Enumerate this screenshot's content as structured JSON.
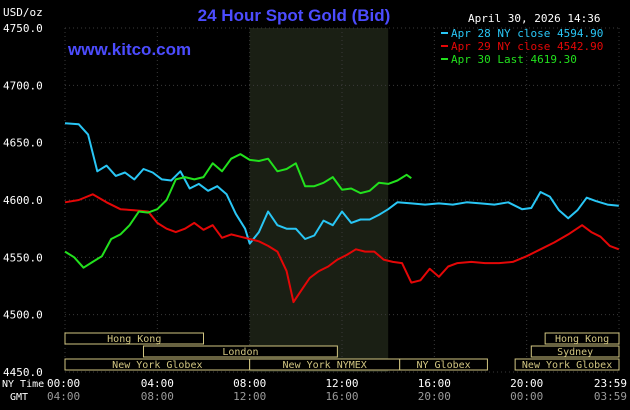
{
  "chart_data": {
    "type": "line",
    "title": "24 Hour Spot Gold (Bid)",
    "unit_label": "USD/oz",
    "watermark": "www.kitco.com",
    "timestamp": "April 30, 2026 14:36",
    "ylim": [
      4450,
      4750
    ],
    "yticks": [
      "4750.0",
      "4700.0",
      "4650.0",
      "4600.0",
      "4550.0",
      "4500.0",
      "4450.0"
    ],
    "xlim": [
      0,
      24
    ],
    "x_ticks_ny": [
      "00:00",
      "04:00",
      "08:00",
      "12:00",
      "16:00",
      "20:00",
      "23:59"
    ],
    "x_ticks_gmt": [
      "04:00",
      "08:00",
      "12:00",
      "16:00",
      "20:00",
      "00:00",
      "03:59"
    ],
    "x_axis_label_ny": "NY Time",
    "x_axis_label_gmt": "GMT",
    "colors": {
      "background": "#000000",
      "highlight": "#1a1f14",
      "grid": "#3a3a3a",
      "title": "#4c4cff",
      "axis_text": "#ffffff",
      "session_fill": "#000000",
      "session_border": "#d2c682",
      "session_text": "#d2c682"
    },
    "highlight_window": [
      8,
      14
    ],
    "series": [
      {
        "name": "Apr 28 NY close 4594.90",
        "color": "#29c6f5",
        "x": [
          0,
          0.6,
          1.0,
          1.4,
          1.8,
          2.2,
          2.6,
          3.0,
          3.4,
          3.8,
          4.2,
          4.6,
          5.0,
          5.4,
          5.8,
          6.2,
          6.6,
          7.0,
          7.4,
          7.8,
          8.0,
          8.4,
          8.8,
          9.2,
          9.6,
          10.0,
          10.4,
          10.8,
          11.2,
          11.6,
          12.0,
          12.4,
          12.8,
          13.2,
          13.6,
          14.0,
          14.4,
          15.0,
          15.6,
          16.2,
          16.8,
          17.4,
          18.0,
          18.6,
          19.2,
          19.8,
          20.2,
          20.6,
          21.0,
          21.4,
          21.8,
          22.2,
          22.6,
          23.0,
          23.5,
          23.99
        ],
        "values": [
          4667,
          4666,
          4657,
          4625,
          4630,
          4621,
          4624,
          4618,
          4627,
          4624,
          4618,
          4617,
          4625,
          4610,
          4614,
          4608,
          4612,
          4605,
          4588,
          4575,
          4562,
          4572,
          4590,
          4578,
          4575,
          4575,
          4566,
          4569,
          4582,
          4578,
          4590,
          4580,
          4583,
          4583,
          4587,
          4592,
          4598,
          4597,
          4596,
          4597,
          4596,
          4598,
          4597,
          4596,
          4598,
          4592,
          4593,
          4607,
          4603,
          4591,
          4584,
          4591,
          4602,
          4599,
          4596,
          4595
        ]
      },
      {
        "name": "Apr 29 NY close 4542.90",
        "color": "#e40707",
        "x": [
          0,
          0.6,
          1.2,
          1.8,
          2.4,
          3.0,
          3.6,
          4.0,
          4.4,
          4.8,
          5.2,
          5.6,
          6.0,
          6.4,
          6.8,
          7.2,
          7.6,
          8.0,
          8.4,
          8.8,
          9.2,
          9.6,
          9.9,
          10.2,
          10.6,
          11.0,
          11.4,
          11.8,
          12.2,
          12.6,
          13.0,
          13.4,
          13.8,
          14.2,
          14.6,
          15.0,
          15.4,
          15.8,
          16.2,
          16.6,
          17.0,
          17.6,
          18.2,
          18.8,
          19.4,
          20.0,
          20.6,
          21.2,
          21.8,
          22.4,
          22.8,
          23.2,
          23.6,
          23.99
        ],
        "values": [
          4598,
          4600,
          4605,
          4598,
          4592,
          4591,
          4590,
          4580,
          4575,
          4572,
          4575,
          4580,
          4574,
          4578,
          4567,
          4570,
          4568,
          4566,
          4564,
          4560,
          4555,
          4538,
          4511,
          4520,
          4532,
          4538,
          4542,
          4548,
          4552,
          4557,
          4555,
          4555,
          4548,
          4546,
          4545,
          4528,
          4530,
          4540,
          4533,
          4542,
          4545,
          4546,
          4545,
          4545,
          4546,
          4551,
          4557,
          4563,
          4570,
          4578,
          4572,
          4568,
          4560,
          4557
        ]
      },
      {
        "name": "Apr 30 Last 4619.30",
        "color": "#22e11d",
        "x": [
          0,
          0.4,
          0.8,
          1.2,
          1.6,
          2.0,
          2.4,
          2.8,
          3.2,
          3.6,
          4.0,
          4.4,
          4.8,
          5.2,
          5.6,
          6.0,
          6.4,
          6.8,
          7.2,
          7.6,
          8.0,
          8.4,
          8.8,
          9.2,
          9.6,
          10.0,
          10.4,
          10.8,
          11.2,
          11.6,
          12.0,
          12.4,
          12.8,
          13.2,
          13.6,
          14.0,
          14.4,
          14.8,
          15.0
        ],
        "values": [
          4555,
          4550,
          4541,
          4546,
          4551,
          4566,
          4570,
          4578,
          4590,
          4589,
          4592,
          4600,
          4618,
          4620,
          4618,
          4620,
          4632,
          4625,
          4636,
          4640,
          4635,
          4634,
          4636,
          4625,
          4627,
          4632,
          4612,
          4612,
          4615,
          4620,
          4609,
          4610,
          4606,
          4608,
          4615,
          4614,
          4617,
          4622,
          4619
        ]
      }
    ],
    "sessions": [
      {
        "label": "Hong Kong",
        "start": 0,
        "end": 6,
        "row": 0
      },
      {
        "label": "Hong Kong",
        "start": 20.8,
        "end": 24,
        "row": 0
      },
      {
        "label": "London",
        "start": 3.4,
        "end": 11.8,
        "row": 1
      },
      {
        "label": "Sydney",
        "start": 20.2,
        "end": 24,
        "row": 1
      },
      {
        "label": "New York Globex",
        "start": 0,
        "end": 8,
        "row": 2
      },
      {
        "label": "New York NYMEX",
        "start": 8,
        "end": 14.5,
        "row": 2
      },
      {
        "label": "NY Globex",
        "start": 14.5,
        "end": 18.3,
        "row": 2
      },
      {
        "label": "New York Globex",
        "start": 19.5,
        "end": 24,
        "row": 2
      }
    ]
  }
}
